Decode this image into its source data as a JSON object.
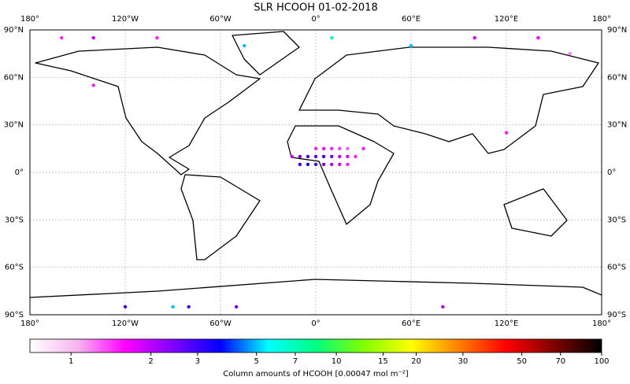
{
  "chart_data": {
    "type": "scatter",
    "title": "SLR HCOOH 01-02-2018",
    "xlim": [
      -180,
      180
    ],
    "ylim": [
      -90,
      90
    ],
    "xticks": [
      {
        "value": -180,
        "label": "180°"
      },
      {
        "value": -120,
        "label": "120°W"
      },
      {
        "value": -60,
        "label": "60°W"
      },
      {
        "value": 0,
        "label": "0°"
      },
      {
        "value": 60,
        "label": "60°E"
      },
      {
        "value": 120,
        "label": "120°E"
      },
      {
        "value": 180,
        "label": "180°"
      }
    ],
    "yticks": [
      {
        "value": 90,
        "label": "90°N"
      },
      {
        "value": 60,
        "label": "60°N"
      },
      {
        "value": 30,
        "label": "30°N"
      },
      {
        "value": 0,
        "label": "0°"
      },
      {
        "value": -30,
        "label": "30°S"
      },
      {
        "value": -60,
        "label": "60°S"
      },
      {
        "value": -90,
        "label": "90°S"
      }
    ],
    "grid": true,
    "x": [
      -15,
      -10,
      -5,
      0,
      5,
      10,
      15,
      20,
      25,
      -10,
      -5,
      0,
      5,
      10,
      15,
      20,
      0,
      5,
      10,
      15,
      20,
      30,
      -160,
      -140,
      -100,
      100,
      140,
      -120,
      -80,
      80,
      60,
      -140,
      160,
      -45,
      10,
      120,
      -90,
      -50
    ],
    "y": [
      10,
      10,
      10,
      10,
      10,
      10,
      10,
      10,
      10,
      5,
      5,
      5,
      5,
      5,
      5,
      5,
      15,
      15,
      15,
      15,
      15,
      15,
      85,
      85,
      85,
      85,
      85,
      -85,
      -85,
      -85,
      80,
      55,
      75,
      80,
      85,
      25,
      -85,
      -85
    ],
    "values": [
      1.8,
      2.5,
      3,
      2.8,
      3,
      2.5,
      2,
      1.8,
      1.5,
      3,
      3.5,
      2.8,
      2.5,
      2,
      1.8,
      1.5,
      1.5,
      1.6,
      1.5,
      1.4,
      1.3,
      1.5,
      1.5,
      2,
      1.5,
      1.8,
      1.6,
      3,
      3,
      2,
      5,
      1.5,
      1.2,
      5,
      7,
      1.5,
      5,
      2.5
    ],
    "clim": [
      0.7,
      100
    ],
    "color_scale": "log",
    "colormap": [
      "#ffffff",
      "#f7b6f0",
      "#ff00ff",
      "#8000ff",
      "#0000ff",
      "#00ffff",
      "#00ff80",
      "#80ff00",
      "#ffff00",
      "#ff8000",
      "#ff0000",
      "#800000",
      "#000000"
    ],
    "colorbar_ticks": [
      1,
      2,
      3,
      5,
      7,
      10,
      15,
      20,
      30,
      50,
      70,
      100
    ],
    "colorbar_label": "Column amounts of HCOOH [0.00047 mol m⁻²]"
  }
}
